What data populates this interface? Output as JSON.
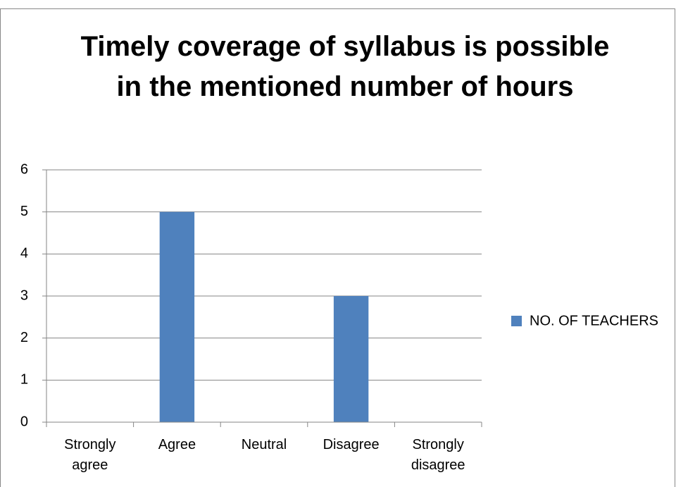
{
  "chart_data": {
    "type": "bar",
    "title": "Timely coverage of syllabus is possible in the mentioned number of hours",
    "categories": [
      "Strongly agree",
      "Agree",
      "Neutral",
      "Disagree",
      "Strongly disagree"
    ],
    "series": [
      {
        "name": "NO. OF TEACHERS",
        "color": "#4f81bd",
        "values": [
          0,
          5,
          0,
          3,
          0
        ]
      }
    ],
    "ylim": [
      0,
      6
    ],
    "yticks": [
      0,
      1,
      2,
      3,
      4,
      5,
      6
    ],
    "grid": true,
    "legend": "right"
  }
}
